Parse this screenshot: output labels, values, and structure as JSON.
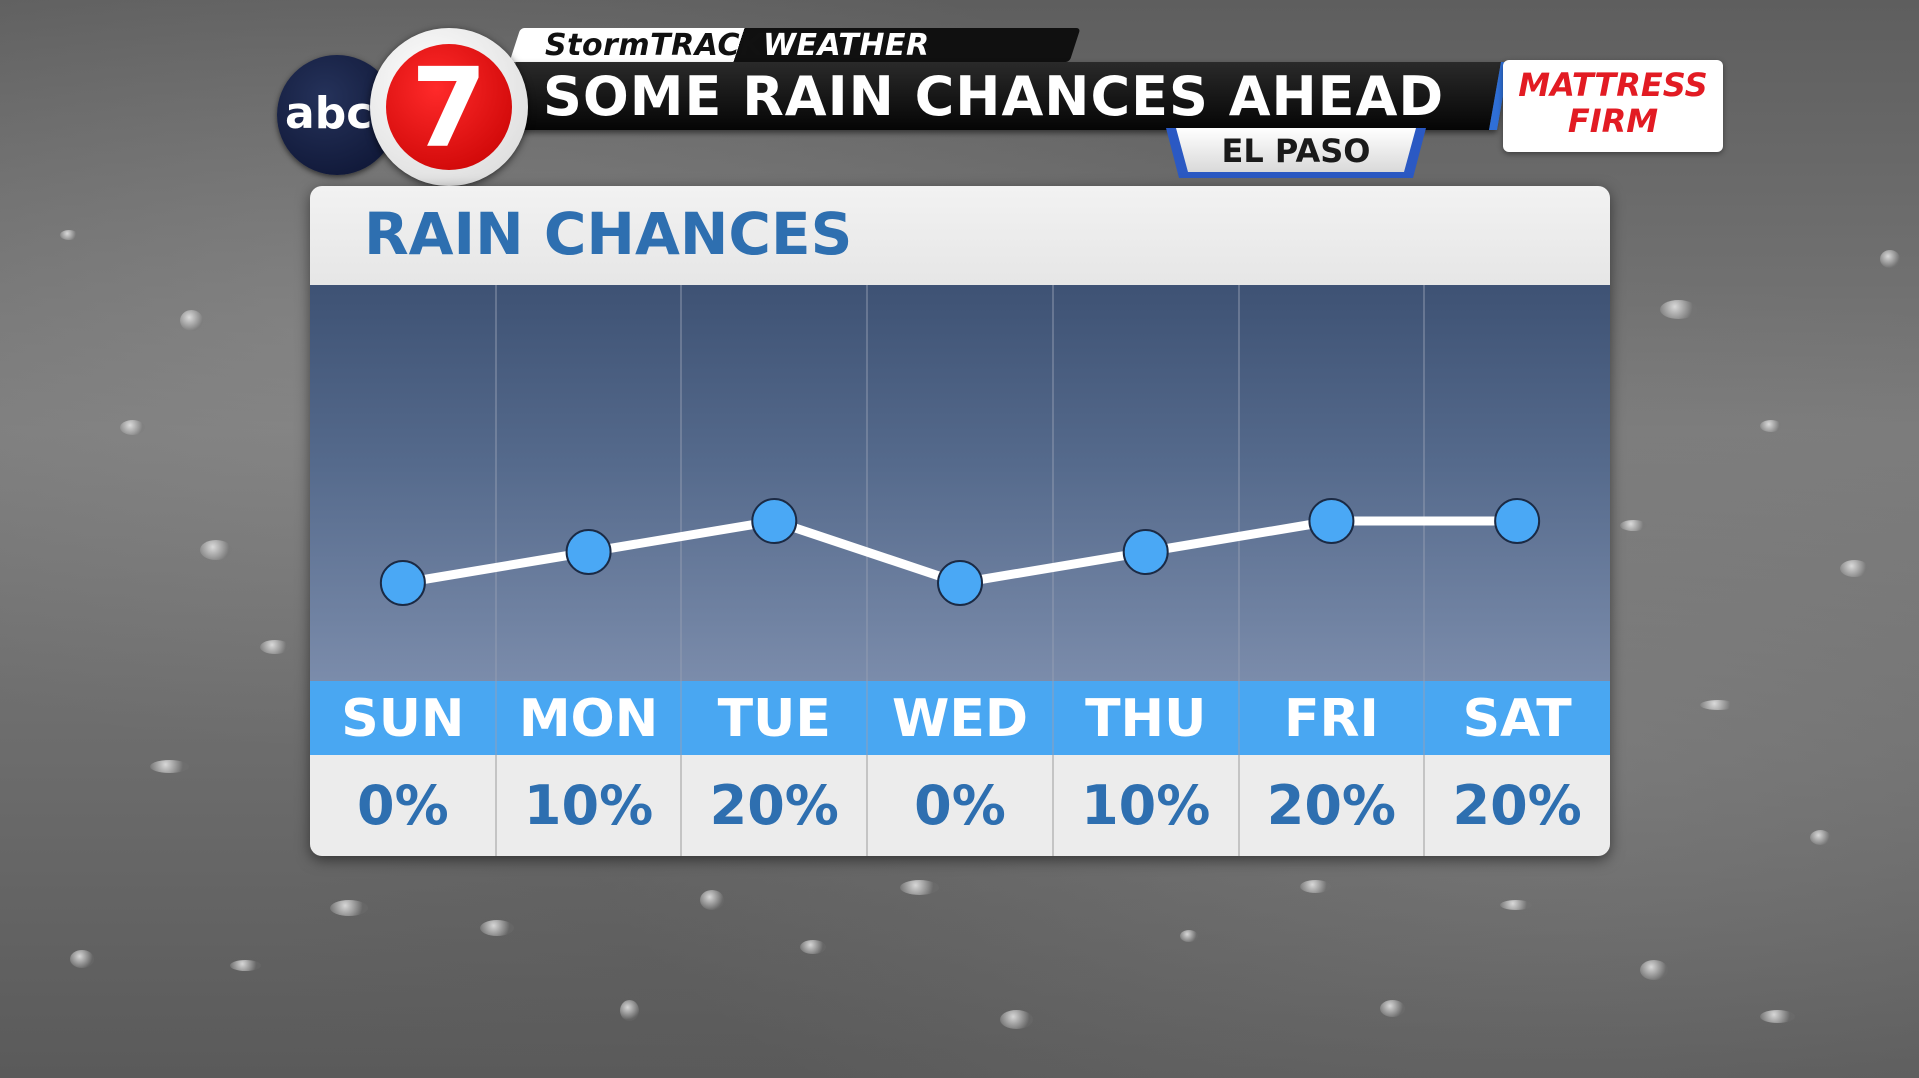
{
  "header": {
    "brand_storm": "Storm",
    "brand_track": "TRACK",
    "brand_weather": "WEATHER",
    "headline": "SOME RAIN CHANCES AHEAD",
    "location": "EL PASO",
    "logo_abc": "abc",
    "logo_number": "7",
    "sponsor_line1": "MATTRESS",
    "sponsor_line2": "FIRM"
  },
  "chart_data": {
    "type": "line",
    "title": "RAIN CHANCES",
    "categories": [
      "SUN",
      "MON",
      "TUE",
      "WED",
      "THU",
      "FRI",
      "SAT"
    ],
    "values": [
      0,
      10,
      20,
      0,
      10,
      20,
      20
    ],
    "value_labels": [
      "0%",
      "10%",
      "20%",
      "0%",
      "10%",
      "20%",
      "20%"
    ],
    "unit": "%",
    "ylim": [
      0,
      100
    ],
    "colors": {
      "line": "#ffffff",
      "marker": "#4aa8f5",
      "day_band": "#49a7f2",
      "value_text": "#2e6fb0"
    }
  }
}
